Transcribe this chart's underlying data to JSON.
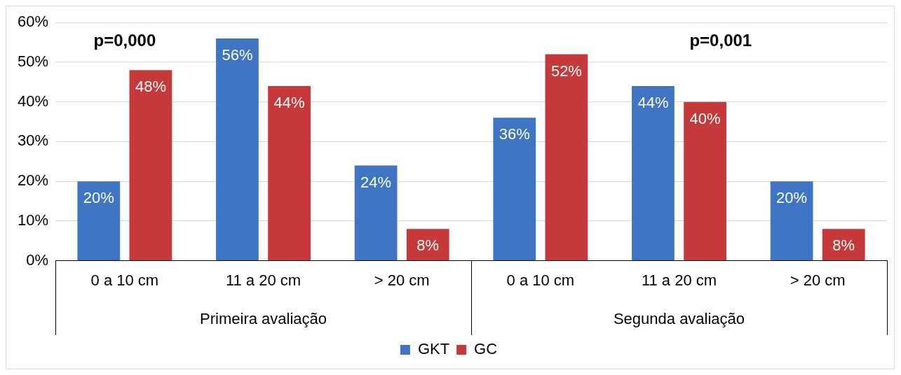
{
  "chart_data": {
    "type": "bar",
    "categories": [
      "0 a 10 cm",
      "11 a 20 cm",
      "> 20 cm",
      "0 a 10 cm",
      "11 a 20 cm",
      "> 20 cm"
    ],
    "series": [
      {
        "name": "GKT",
        "color": "#3f75c2",
        "values": [
          20,
          56,
          24,
          36,
          44,
          20
        ],
        "value_labels": [
          "20%",
          "56%",
          "24%",
          "36%",
          "44%",
          "20%"
        ]
      },
      {
        "name": "GC",
        "color": "#c6393b",
        "values": [
          48,
          44,
          8,
          52,
          40,
          8
        ],
        "value_labels": [
          "48%",
          "44%",
          "8%",
          "52%",
          "40%",
          "8%"
        ]
      }
    ],
    "ylim": [
      0,
      60
    ],
    "yticks": [
      {
        "value": 0,
        "label": "0%"
      },
      {
        "value": 10,
        "label": "10%"
      },
      {
        "value": 20,
        "label": "20%"
      },
      {
        "value": 30,
        "label": "30%"
      },
      {
        "value": 40,
        "label": "40%"
      },
      {
        "value": 50,
        "label": "50%"
      },
      {
        "value": 60,
        "label": "60%"
      }
    ],
    "grid": "y",
    "legend": "bottom",
    "annotations": [
      "Primeira avaliação",
      "Segunda avaliação",
      "p=0,000",
      "p=0,001"
    ]
  }
}
